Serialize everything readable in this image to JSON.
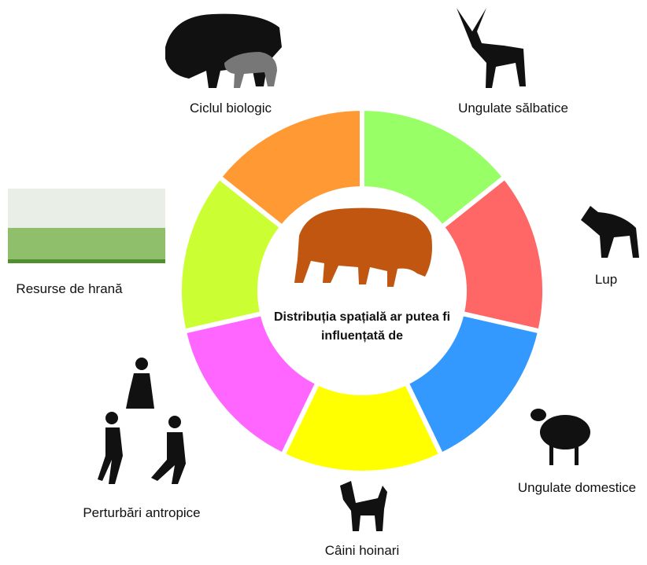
{
  "center": {
    "lines": [
      "Distribuția spațială ar putea fi",
      "influențată de"
    ]
  },
  "factors": [
    {
      "label": "Ungulate sălbatice"
    },
    {
      "label": "Lup"
    },
    {
      "label": "Ungulate domestice"
    },
    {
      "label": "Câini hoinari"
    },
    {
      "label": "Perturbări antropice"
    },
    {
      "label": "Resurse de hrană"
    },
    {
      "label": "Ciclul biologic"
    }
  ]
}
